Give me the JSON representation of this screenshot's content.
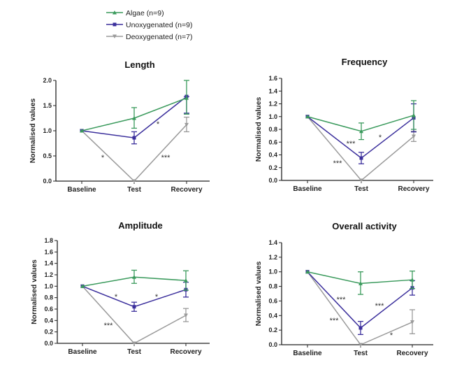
{
  "legend": [
    {
      "name": "Algae (n=9)",
      "color": "#3a9a5c",
      "marker": "triangle-up"
    },
    {
      "name": "Unoxygenated (n=9)",
      "color": "#3b2f9c",
      "marker": "square"
    },
    {
      "name": "Deoxygenated (n=7)",
      "color": "#9a9a9a",
      "marker": "triangle-down"
    }
  ],
  "chart_data": [
    {
      "type": "line",
      "title": "Length",
      "ylabel": "Normalised values",
      "categories": [
        "Baseline",
        "Test",
        "Recovery"
      ],
      "ylim": [
        0,
        2.0
      ],
      "yticks": [
        "0.0",
        "0.5",
        "1.0",
        "1.5",
        "2.0"
      ],
      "ytick_values": [
        0,
        0.5,
        1.0,
        1.5,
        2.0
      ],
      "series": [
        {
          "name": "Algae (n=9)",
          "values": [
            1.0,
            1.25,
            1.65
          ],
          "err_low": [
            1.0,
            1.05,
            1.33
          ],
          "err_high": [
            1.0,
            1.46,
            2.0
          ]
        },
        {
          "name": "Unoxygenated (n=9)",
          "values": [
            1.0,
            0.86,
            1.68
          ],
          "err_low": [
            1.0,
            0.74,
            1.35
          ],
          "err_high": [
            1.0,
            0.98,
            1.68
          ]
        },
        {
          "name": "Deoxygenated (n=7)",
          "values": [
            1.0,
            0.0,
            1.12
          ],
          "err_low": [
            1.0,
            0.0,
            0.98
          ],
          "err_high": [
            1.0,
            0.0,
            1.27
          ]
        }
      ],
      "annotations": [
        "*",
        "*",
        "***"
      ]
    },
    {
      "type": "line",
      "title": "Frequency",
      "ylabel": "Normalised values",
      "categories": [
        "Baseline",
        "Test",
        "Recovery"
      ],
      "ylim": [
        0,
        1.6
      ],
      "yticks": [
        "0.0",
        "0.2",
        "0.4",
        "0.6",
        "0.8",
        "1.0",
        "1.2",
        "1.4",
        "1.6"
      ],
      "ytick_values": [
        0,
        0.2,
        0.4,
        0.6,
        0.8,
        1.0,
        1.2,
        1.4,
        1.6
      ],
      "series": [
        {
          "name": "Algae (n=9)",
          "values": [
            1.0,
            0.77,
            1.02
          ],
          "err_low": [
            1.0,
            0.64,
            0.8
          ],
          "err_high": [
            1.0,
            0.9,
            1.25
          ]
        },
        {
          "name": "Unoxygenated (n=9)",
          "values": [
            1.0,
            0.35,
            0.98
          ],
          "err_low": [
            1.0,
            0.26,
            0.76
          ],
          "err_high": [
            1.0,
            0.44,
            1.2
          ]
        },
        {
          "name": "Deoxygenated (n=7)",
          "values": [
            1.0,
            0.0,
            0.69
          ],
          "err_low": [
            1.0,
            0.0,
            0.61
          ],
          "err_high": [
            1.0,
            0.0,
            0.77
          ]
        }
      ],
      "annotations": [
        "***",
        "*",
        "***"
      ]
    },
    {
      "type": "line",
      "title": "Amplitude",
      "ylabel": "Normalised values",
      "categories": [
        "Baseline",
        "Test",
        "Recovery"
      ],
      "ylim": [
        0,
        1.8
      ],
      "yticks": [
        "0.0",
        "0.2",
        "0.4",
        "0.6",
        "0.8",
        "1.0",
        "1.2",
        "1.4",
        "1.6",
        "1.8"
      ],
      "ytick_values": [
        0,
        0.2,
        0.4,
        0.6,
        0.8,
        1.0,
        1.2,
        1.4,
        1.6,
        1.8
      ],
      "series": [
        {
          "name": "Algae (n=9)",
          "values": [
            1.0,
            1.16,
            1.1
          ],
          "err_low": [
            1.0,
            1.05,
            0.93
          ],
          "err_high": [
            1.0,
            1.28,
            1.27
          ]
        },
        {
          "name": "Unoxygenated (n=9)",
          "values": [
            1.0,
            0.64,
            0.94
          ],
          "err_low": [
            1.0,
            0.56,
            0.81
          ],
          "err_high": [
            1.0,
            0.72,
            1.07
          ]
        },
        {
          "name": "Deoxygenated (n=7)",
          "values": [
            1.0,
            0.0,
            0.49
          ],
          "err_low": [
            1.0,
            0.0,
            0.38
          ],
          "err_high": [
            1.0,
            0.0,
            0.61
          ]
        }
      ],
      "annotations": [
        "*",
        "*",
        "***"
      ]
    },
    {
      "type": "line",
      "title": "Overall activity",
      "ylabel": "Normalised values",
      "categories": [
        "Baseline",
        "Test",
        "Recovery"
      ],
      "ylim": [
        0,
        1.4
      ],
      "yticks": [
        "0.0",
        "0.2",
        "0.4",
        "0.6",
        "0.8",
        "1.0",
        "1.2",
        "1.4"
      ],
      "ytick_values": [
        0,
        0.2,
        0.4,
        0.6,
        0.8,
        1.0,
        1.2,
        1.4
      ],
      "series": [
        {
          "name": "Algae (n=9)",
          "values": [
            1.0,
            0.84,
            0.89
          ],
          "err_low": [
            1.0,
            0.69,
            0.77
          ],
          "err_high": [
            1.0,
            1.0,
            1.01
          ]
        },
        {
          "name": "Unoxygenated (n=9)",
          "values": [
            1.0,
            0.23,
            0.78
          ],
          "err_low": [
            1.0,
            0.14,
            0.68
          ],
          "err_high": [
            1.0,
            0.32,
            0.88
          ]
        },
        {
          "name": "Deoxygenated (n=7)",
          "values": [
            1.0,
            0.0,
            0.31
          ],
          "err_low": [
            1.0,
            0.0,
            0.15
          ],
          "err_high": [
            1.0,
            0.0,
            0.48
          ]
        }
      ],
      "annotations": [
        "***",
        "***",
        "***",
        "*"
      ]
    }
  ]
}
